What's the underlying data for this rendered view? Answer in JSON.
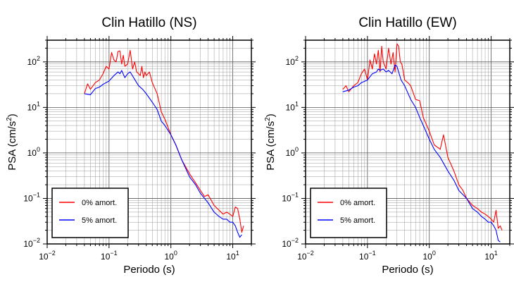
{
  "chart_data": [
    {
      "type": "line",
      "title": "Clin Hatillo (NS)",
      "xlabel": "Periodo (s)",
      "ylabel_main": "PSA (cm/s",
      "ylabel_sup": "2",
      "ylabel_tail": ")",
      "xscale": "log",
      "yscale": "log",
      "xlim": [
        0.01,
        20
      ],
      "ylim": [
        0.01,
        300
      ],
      "grid": true,
      "legend_position": "bottom-left",
      "xticks": [
        {
          "base": "10",
          "exp": "−2"
        },
        {
          "base": "10",
          "exp": "−1"
        },
        {
          "base": "10",
          "exp": "0"
        },
        {
          "base": "10",
          "exp": "1"
        }
      ],
      "yticks": [
        {
          "base": "10",
          "exp": "−2"
        },
        {
          "base": "10",
          "exp": "−1"
        },
        {
          "base": "10",
          "exp": "0"
        },
        {
          "base": "10",
          "exp": "1"
        },
        {
          "base": "10",
          "exp": "2"
        }
      ],
      "series": [
        {
          "name": "0% amort.",
          "color": "#ff0000",
          "x": [
            0.04,
            0.045,
            0.05,
            0.06,
            0.07,
            0.08,
            0.09,
            0.1,
            0.11,
            0.12,
            0.13,
            0.14,
            0.15,
            0.16,
            0.17,
            0.18,
            0.2,
            0.22,
            0.24,
            0.26,
            0.28,
            0.3,
            0.32,
            0.34,
            0.36,
            0.38,
            0.4,
            0.45,
            0.5,
            0.6,
            0.7,
            0.8,
            1.0,
            1.2,
            1.5,
            2.0,
            2.5,
            3.0,
            3.5,
            4.0,
            5.0,
            6.0,
            7.0,
            8.0,
            9.0,
            10.0,
            11.0,
            12.0,
            13.0,
            14.0,
            15.0
          ],
          "y": [
            20,
            33,
            25,
            35,
            40,
            55,
            80,
            70,
            160,
            110,
            100,
            170,
            175,
            90,
            140,
            80,
            90,
            180,
            70,
            100,
            60,
            55,
            50,
            80,
            45,
            60,
            50,
            60,
            35,
            20,
            8,
            5.5,
            2.5,
            1.5,
            0.7,
            0.35,
            0.22,
            0.15,
            0.11,
            0.12,
            0.07,
            0.055,
            0.045,
            0.05,
            0.045,
            0.04,
            0.065,
            0.06,
            0.035,
            0.018,
            0.025
          ]
        },
        {
          "name": "5% amort.",
          "color": "#0000ff",
          "x": [
            0.04,
            0.05,
            0.06,
            0.07,
            0.08,
            0.1,
            0.12,
            0.14,
            0.15,
            0.16,
            0.18,
            0.2,
            0.22,
            0.25,
            0.28,
            0.3,
            0.35,
            0.4,
            0.5,
            0.6,
            0.7,
            0.8,
            1.0,
            1.2,
            1.5,
            2.0,
            2.5,
            3.0,
            4.0,
            5.0,
            6.0,
            7.0,
            8.0,
            9.0,
            10.0,
            11.0,
            12.0,
            13.0,
            14.0
          ],
          "y": [
            20,
            19,
            26,
            28,
            32,
            38,
            50,
            60,
            55,
            65,
            45,
            55,
            60,
            45,
            35,
            30,
            25,
            20,
            13,
            9,
            5,
            4,
            2.5,
            1.5,
            0.7,
            0.3,
            0.2,
            0.13,
            0.08,
            0.05,
            0.04,
            0.035,
            0.035,
            0.03,
            0.03,
            0.025,
            0.018,
            0.014,
            0.016
          ]
        }
      ]
    },
    {
      "type": "line",
      "title": "Clin Hatillo (EW)",
      "xlabel": "Periodo (s)",
      "ylabel_main": "PSA (cm/s",
      "ylabel_sup": "2",
      "ylabel_tail": ")",
      "xscale": "log",
      "yscale": "log",
      "xlim": [
        0.01,
        20
      ],
      "ylim": [
        0.01,
        300
      ],
      "grid": true,
      "legend_position": "bottom-left",
      "xticks": [
        {
          "base": "10",
          "exp": "−2"
        },
        {
          "base": "10",
          "exp": "−1"
        },
        {
          "base": "10",
          "exp": "0"
        },
        {
          "base": "10",
          "exp": "1"
        }
      ],
      "yticks": [
        {
          "base": "10",
          "exp": "−2"
        },
        {
          "base": "10",
          "exp": "−1"
        },
        {
          "base": "10",
          "exp": "0"
        },
        {
          "base": "10",
          "exp": "1"
        },
        {
          "base": "10",
          "exp": "2"
        }
      ],
      "series": [
        {
          "name": "0% amort.",
          "color": "#ff0000",
          "x": [
            0.04,
            0.045,
            0.05,
            0.06,
            0.07,
            0.08,
            0.09,
            0.1,
            0.11,
            0.12,
            0.13,
            0.14,
            0.15,
            0.16,
            0.17,
            0.18,
            0.2,
            0.22,
            0.24,
            0.26,
            0.28,
            0.3,
            0.32,
            0.34,
            0.36,
            0.38,
            0.4,
            0.45,
            0.5,
            0.6,
            0.7,
            0.8,
            1.0,
            1.2,
            1.5,
            1.7,
            2.0,
            2.5,
            3.0,
            3.5,
            4.0,
            5.0,
            6.0,
            7.0,
            8.0,
            9.0,
            10.0,
            11.0,
            12.0,
            13.0,
            14.0,
            15.0
          ],
          "y": [
            25,
            30,
            22,
            30,
            35,
            55,
            70,
            40,
            110,
            70,
            150,
            90,
            180,
            60,
            220,
            100,
            70,
            200,
            90,
            160,
            60,
            250,
            220,
            100,
            90,
            60,
            40,
            35,
            30,
            15,
            14,
            6,
            3,
            1.5,
            1.2,
            2.5,
            0.8,
            0.4,
            0.2,
            0.15,
            0.1,
            0.07,
            0.06,
            0.05,
            0.045,
            0.04,
            0.035,
            0.03,
            0.055,
            0.022,
            0.025,
            0.02
          ]
        },
        {
          "name": "5% amort.",
          "color": "#0000ff",
          "x": [
            0.04,
            0.05,
            0.06,
            0.07,
            0.08,
            0.1,
            0.12,
            0.14,
            0.15,
            0.16,
            0.18,
            0.2,
            0.22,
            0.25,
            0.28,
            0.3,
            0.32,
            0.35,
            0.4,
            0.5,
            0.6,
            0.7,
            0.8,
            1.0,
            1.2,
            1.5,
            2.0,
            2.5,
            3.0,
            4.0,
            5.0,
            6.0,
            7.0,
            8.0,
            9.0,
            10.0,
            11.0,
            12.0,
            13.0,
            14.0
          ],
          "y": [
            22,
            24,
            28,
            30,
            35,
            40,
            55,
            60,
            70,
            65,
            70,
            60,
            65,
            55,
            85,
            80,
            60,
            40,
            30,
            15,
            10,
            6,
            4,
            2,
            1.2,
            0.8,
            0.4,
            0.25,
            0.15,
            0.1,
            0.06,
            0.05,
            0.04,
            0.035,
            0.03,
            0.03,
            0.025,
            0.02,
            0.012,
            0.011
          ]
        }
      ]
    }
  ]
}
